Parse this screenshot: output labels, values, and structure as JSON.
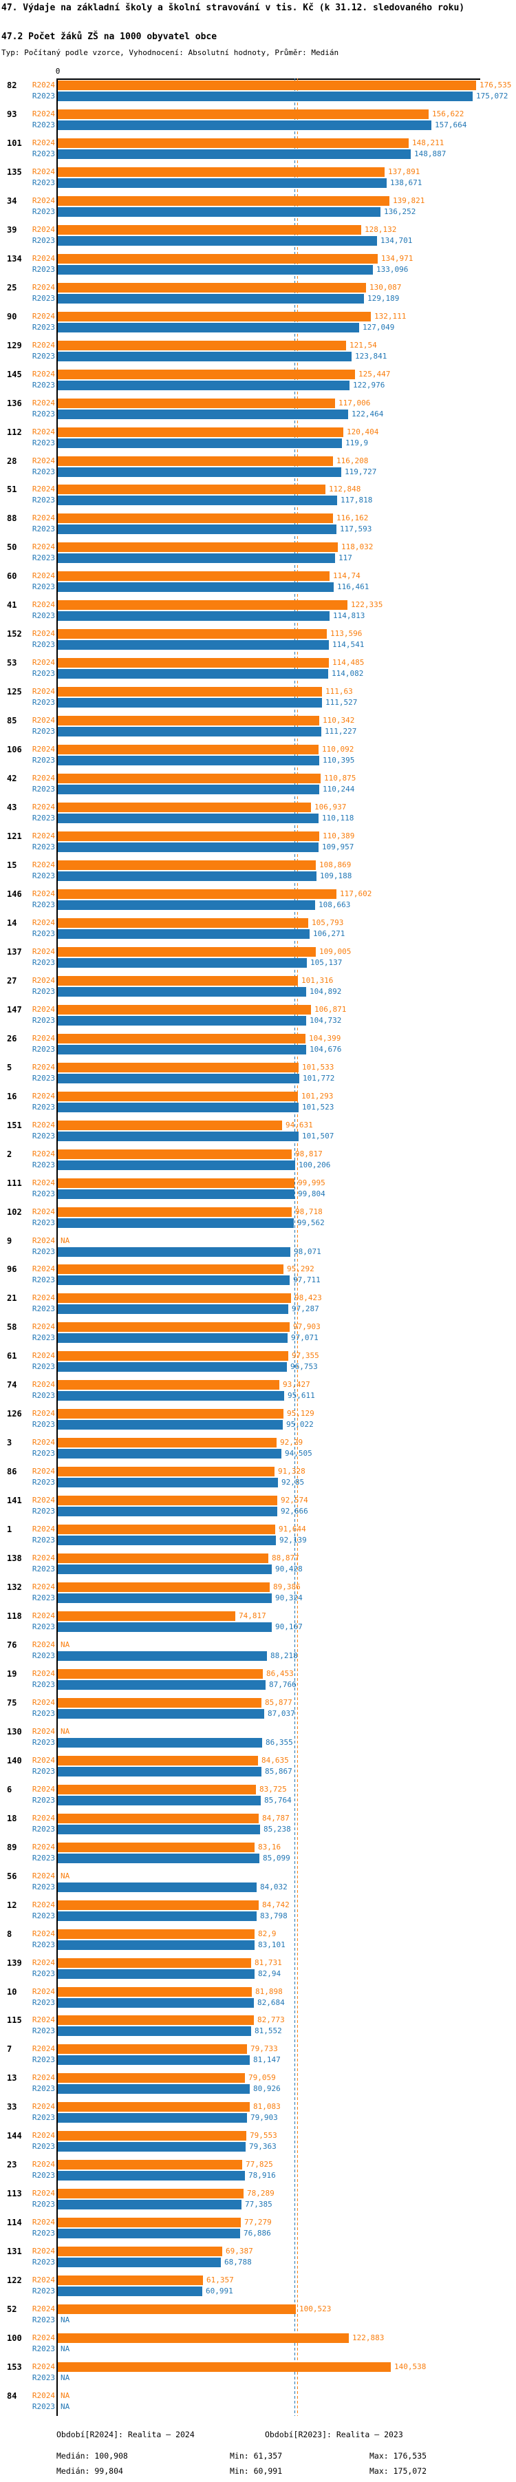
{
  "header": {
    "title": "47. Výdaje na základní školy a školní stravování v tis. Kč (k 31.12. sledovaného roku)",
    "subtitle": "47.2 Počet žáků ZŠ na 1000 obyvatel obce",
    "meta": "Typ: Počítaný podle vzorce, Vyhodnocení: Absolutní hodnoty, Průměr: Medián"
  },
  "axis": {
    "zero_label": "0"
  },
  "na_label": "NA",
  "colors": {
    "r2024": "#f97e0e",
    "r2023": "#2277b5",
    "axis": "#000000",
    "label": "#000000"
  },
  "legend": {
    "series_r2024": "Období[R2024]: Realita – 2024",
    "series_r2023": "Období[R2023]: Realita – 2023",
    "median_r2024": "Medián: 100,908",
    "min_r2024": "Min: 61,357",
    "max_r2024": "Max: 176,535",
    "median_r2023": "Medián: 99,804",
    "min_r2023": "Min: 60,991",
    "max_r2023": "Max: 175,072"
  },
  "chart_data": {
    "type": "bar",
    "orientation": "horizontal",
    "title": "47.2 Počet žáků ZŠ na 1000 obyvatel obce",
    "xlabel": "",
    "ylabel": "obec (číslo obce)",
    "xlim": [
      0,
      178
    ],
    "grid": false,
    "legend_position": "bottom",
    "value_format": "czech decimal comma, trailing zeros trimmed, NA when missing",
    "categories": [
      "82",
      "93",
      "101",
      "135",
      "34",
      "39",
      "134",
      "25",
      "90",
      "129",
      "145",
      "136",
      "112",
      "28",
      "51",
      "88",
      "50",
      "60",
      "41",
      "152",
      "53",
      "125",
      "85",
      "106",
      "42",
      "43",
      "121",
      "15",
      "146",
      "14",
      "137",
      "27",
      "147",
      "26",
      "5",
      "16",
      "151",
      "2",
      "111",
      "102",
      "9",
      "96",
      "21",
      "58",
      "61",
      "74",
      "126",
      "3",
      "86",
      "141",
      "1",
      "138",
      "132",
      "118",
      "76",
      "19",
      "75",
      "130",
      "140",
      "6",
      "18",
      "89",
      "56",
      "12",
      "8",
      "139",
      "10",
      "115",
      "7",
      "13",
      "33",
      "144",
      "23",
      "113",
      "114",
      "131",
      "122",
      "52",
      "100",
      "153",
      "84"
    ],
    "series": [
      {
        "name": "R2024",
        "label": "Období[R2024]: Realita – 2024",
        "color": "#f97e0e",
        "median": 100.908,
        "min": 61.357,
        "max": 176.535,
        "values": [
          176.535,
          156.622,
          148.211,
          137.891,
          139.821,
          128.132,
          134.971,
          130.087,
          132.111,
          121.54,
          125.447,
          117.006,
          120.404,
          116.208,
          112.848,
          116.162,
          118.032,
          114.74,
          122.335,
          113.596,
          114.485,
          111.63,
          110.342,
          110.092,
          110.875,
          106.937,
          110.389,
          108.869,
          117.602,
          105.793,
          109.005,
          101.316,
          106.871,
          104.399,
          101.533,
          101.293,
          94.631,
          98.817,
          99.995,
          98.718,
          null,
          95.292,
          98.423,
          97.903,
          97.355,
          93.427,
          95.129,
          92.29,
          91.328,
          92.574,
          91.644,
          88.877,
          89.386,
          74.817,
          null,
          86.453,
          85.877,
          null,
          84.635,
          83.725,
          84.787,
          83.16,
          null,
          84.742,
          82.9,
          81.731,
          81.898,
          82.773,
          79.733,
          79.059,
          81.083,
          79.553,
          77.825,
          78.289,
          77.279,
          69.387,
          61.357,
          100.523,
          122.883,
          140.538,
          null
        ]
      },
      {
        "name": "R2023",
        "label": "Období[R2023]: Realita – 2023",
        "color": "#2277b5",
        "median": 99.804,
        "min": 60.991,
        "max": 175.072,
        "values": [
          175.072,
          157.664,
          148.887,
          138.671,
          136.252,
          134.701,
          133.096,
          129.189,
          127.049,
          123.841,
          122.976,
          122.464,
          119.9,
          119.727,
          117.818,
          117.593,
          117,
          116.461,
          114.813,
          114.541,
          114.082,
          111.527,
          111.227,
          110.395,
          110.244,
          110.118,
          109.957,
          109.188,
          108.663,
          106.271,
          105.137,
          104.892,
          104.732,
          104.676,
          101.772,
          101.523,
          101.507,
          100.206,
          99.804,
          99.562,
          98.071,
          97.711,
          97.287,
          97.071,
          96.753,
          95.611,
          95.022,
          94.505,
          92.85,
          92.666,
          92.139,
          90.428,
          90.324,
          90.167,
          88.218,
          87.766,
          87.037,
          86.355,
          85.867,
          85.764,
          85.238,
          85.099,
          84.032,
          83.798,
          83.101,
          82.94,
          82.684,
          81.552,
          81.147,
          80.926,
          79.903,
          79.363,
          78.916,
          77.385,
          76.886,
          68.788,
          60.991,
          null,
          null,
          null,
          null
        ]
      }
    ]
  }
}
